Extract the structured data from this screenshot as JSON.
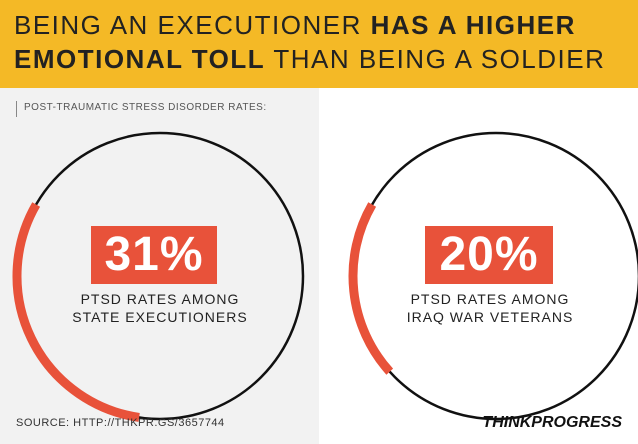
{
  "header": {
    "line1_regular": "BEING AN EXECUTIONER ",
    "line1_bold": "HAS A HIGHER",
    "line2_bold": "EMOTIONAL TOLL",
    "line2_regular": " THAN BEING A SOLDIER"
  },
  "subtitle": "POST-TRAUMATIC STRESS DISORDER RATES:",
  "chart_data": {
    "type": "pie",
    "title": "BEING AN EXECUTIONER HAS A HIGHER EMOTIONAL TOLL THAN BEING A SOLDIER",
    "subtitle": "POST-TRAUMATIC STRESS DISORDER RATES:",
    "items": [
      {
        "label_line1": "PTSD RATES AMONG",
        "label_line2": "STATE EXECUTIONERS",
        "value": 31,
        "value_label": "31%"
      },
      {
        "label_line1": "PTSD RATES AMONG",
        "label_line2": "IRAQ WAR VETERANS",
        "value": 20,
        "value_label": "20%"
      }
    ]
  },
  "colors": {
    "header_bg": "#f4b926",
    "accent": "#e8523a",
    "ring": "#111111",
    "left_panel_bg": "#f2f2f2"
  },
  "source": "SOURCE: HTTP://THKPR.GS/3657744",
  "logo": "THINKPROGRESS"
}
